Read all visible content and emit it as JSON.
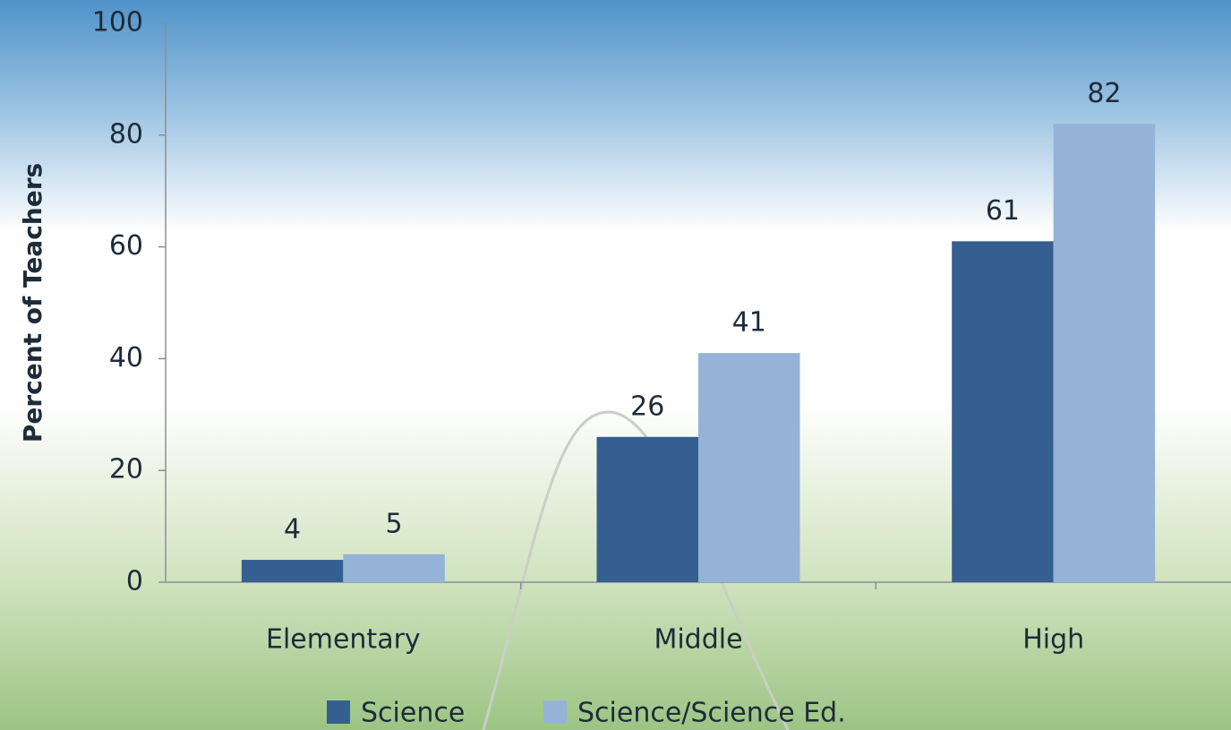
{
  "chart_data": {
    "type": "bar",
    "y_label": "Percent of Teachers",
    "categories": [
      "Elementary",
      "Middle",
      "High"
    ],
    "series": [
      {
        "name": "Science",
        "color": "#365f91",
        "values": [
          4,
          26,
          61
        ]
      },
      {
        "name": "Science/Science Ed.",
        "color": "#95b3d7",
        "values": [
          5,
          41,
          82
        ]
      }
    ],
    "ylim": [
      0,
      100
    ],
    "yticks": [
      0,
      20,
      40,
      60,
      80,
      100
    ],
    "grid": false,
    "legend": "bottom"
  }
}
